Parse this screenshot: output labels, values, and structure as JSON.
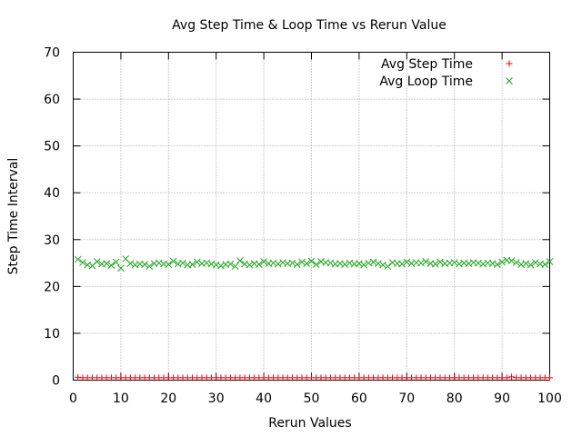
{
  "chart_data": {
    "type": "scatter",
    "title": "Avg Step Time & Loop Time vs Rerun Value",
    "xlabel": "Rerun Values",
    "ylabel": "Step Time Interval",
    "xlim": [
      0,
      100
    ],
    "ylim": [
      0,
      70
    ],
    "xticks": [
      0,
      10,
      20,
      30,
      40,
      50,
      60,
      70,
      80,
      90,
      100
    ],
    "yticks": [
      0,
      10,
      20,
      30,
      40,
      50,
      60,
      70
    ],
    "grid": true,
    "legend_position": "top-right",
    "x": [
      1,
      2,
      3,
      4,
      5,
      6,
      7,
      8,
      9,
      10,
      11,
      12,
      13,
      14,
      15,
      16,
      17,
      18,
      19,
      20,
      21,
      22,
      23,
      24,
      25,
      26,
      27,
      28,
      29,
      30,
      31,
      32,
      33,
      34,
      35,
      36,
      37,
      38,
      39,
      40,
      41,
      42,
      43,
      44,
      45,
      46,
      47,
      48,
      49,
      50,
      51,
      52,
      53,
      54,
      55,
      56,
      57,
      58,
      59,
      60,
      61,
      62,
      63,
      64,
      65,
      66,
      67,
      68,
      69,
      70,
      71,
      72,
      73,
      74,
      75,
      76,
      77,
      78,
      79,
      80,
      81,
      82,
      83,
      84,
      85,
      86,
      87,
      88,
      89,
      90,
      91,
      92,
      93,
      94,
      95,
      96,
      97,
      98,
      99,
      100
    ],
    "series": [
      {
        "name": "Avg Step Time",
        "marker": "plus",
        "color": "#e8000b",
        "values": [
          0.6,
          0.5,
          0.5,
          0.5,
          0.5,
          0.5,
          0.5,
          0.5,
          0.5,
          0.5,
          0.5,
          0.5,
          0.5,
          0.5,
          0.5,
          0.5,
          0.5,
          0.5,
          0.5,
          0.5,
          0.5,
          0.5,
          0.5,
          0.5,
          0.5,
          0.5,
          0.5,
          0.5,
          0.5,
          0.5,
          0.5,
          0.5,
          0.5,
          0.5,
          0.5,
          0.5,
          0.5,
          0.5,
          0.5,
          0.5,
          0.5,
          0.5,
          0.5,
          0.5,
          0.5,
          0.5,
          0.5,
          0.5,
          0.5,
          0.5,
          0.5,
          0.5,
          0.5,
          0.5,
          0.5,
          0.5,
          0.5,
          0.5,
          0.5,
          0.5,
          0.5,
          0.5,
          0.5,
          0.5,
          0.5,
          0.5,
          0.5,
          0.5,
          0.5,
          0.5,
          0.5,
          0.5,
          0.5,
          0.5,
          0.5,
          0.5,
          0.5,
          0.5,
          0.5,
          0.5,
          0.5,
          0.5,
          0.5,
          0.5,
          0.5,
          0.5,
          0.5,
          0.5,
          0.5,
          0.5,
          0.5,
          0.7,
          0.5,
          0.5,
          0.5,
          0.5,
          0.5,
          0.5,
          0.5,
          0.5
        ]
      },
      {
        "name": "Avg Loop Time",
        "marker": "cross",
        "color": "#1ea51e",
        "values": [
          25.8,
          25.1,
          24.6,
          24.4,
          25.3,
          24.8,
          24.9,
          24.5,
          25.2,
          23.9,
          25.9,
          24.9,
          24.6,
          24.8,
          24.7,
          24.3,
          24.9,
          25.0,
          24.8,
          24.7,
          25.4,
          24.8,
          25.0,
          24.6,
          24.7,
          25.2,
          24.9,
          25.0,
          24.8,
          24.6,
          24.4,
          24.7,
          24.8,
          24.3,
          25.5,
          24.8,
          24.6,
          24.9,
          24.7,
          25.3,
          24.9,
          25.0,
          24.8,
          25.1,
          24.9,
          25.0,
          24.7,
          25.2,
          24.9,
          25.4,
          24.7,
          25.3,
          25.1,
          25.0,
          24.8,
          24.9,
          24.7,
          25.0,
          24.8,
          24.9,
          24.6,
          25.0,
          25.2,
          24.9,
          24.6,
          24.3,
          25.1,
          24.9,
          24.8,
          25.2,
          24.9,
          25.1,
          25.0,
          25.3,
          24.9,
          24.8,
          25.2,
          24.9,
          25.0,
          25.1,
          24.8,
          25.0,
          24.9,
          25.1,
          25.0,
          24.8,
          25.0,
          24.9,
          24.7,
          25.2,
          25.6,
          25.5,
          25.1,
          24.7,
          24.9,
          24.6,
          25.1,
          24.8,
          24.7,
          25.3
        ]
      }
    ]
  }
}
